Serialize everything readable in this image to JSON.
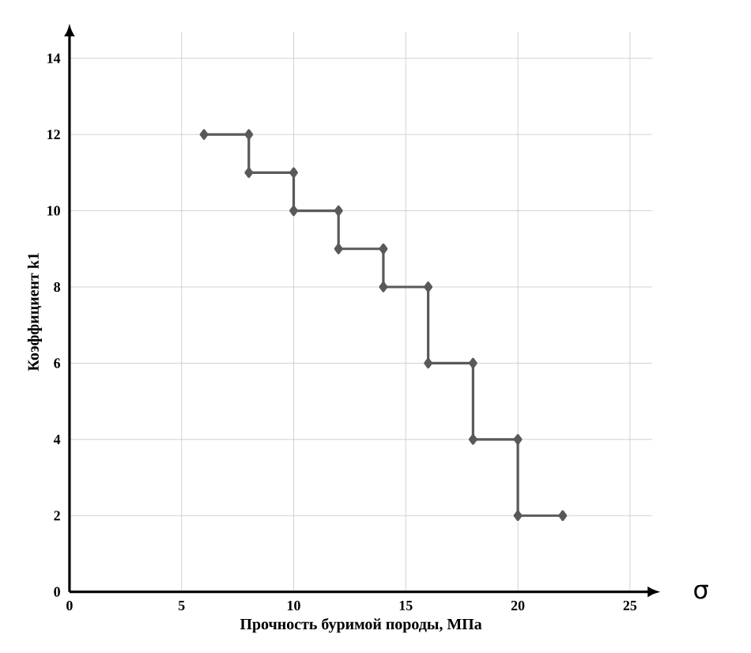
{
  "chart_data": {
    "type": "line",
    "xlabel": "Прочность буримой породы, МПа",
    "ylabel": "Коэффициент k1",
    "x": [
      6,
      8,
      8,
      10,
      10,
      12,
      12,
      14,
      14,
      16,
      16,
      18,
      18,
      20,
      20,
      22
    ],
    "series": [
      {
        "color": "#595959",
        "values": [
          12,
          12,
          11,
          11,
          10,
          10,
          9,
          9,
          8,
          8,
          6,
          6,
          4,
          4,
          2,
          2
        ]
      }
    ],
    "xlim": [
      0,
      25
    ],
    "ylim": [
      0,
      14
    ],
    "xticks": [
      0,
      5,
      10,
      15,
      20,
      25
    ],
    "yticks": [
      0,
      2,
      4,
      6,
      8,
      10,
      12,
      14
    ],
    "grid": true,
    "marker": "diamond",
    "line_style": "solid",
    "annotations": [
      "σ"
    ]
  }
}
